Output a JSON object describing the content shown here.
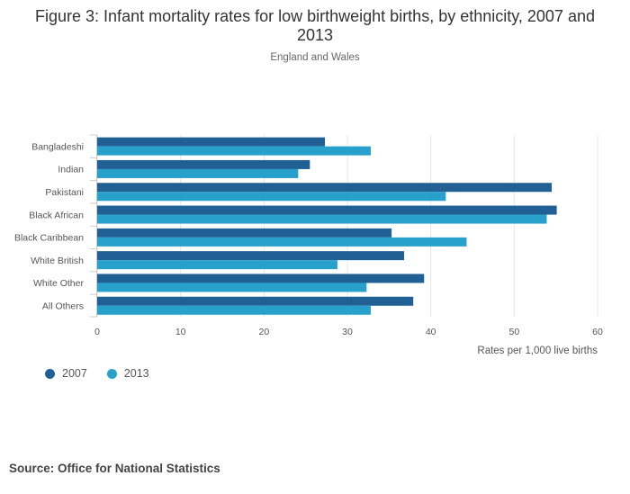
{
  "title": "Figure 3: Infant mortality rates for low birthweight births, by ethnicity, 2007 and 2013",
  "subtitle": "England and Wales",
  "source": "Source: Office for National Statistics",
  "colors": {
    "series_2007": "#206095",
    "series_2013": "#27a0cc",
    "grid": "#e6e6e6",
    "axis": "#cccccc",
    "label": "#555555"
  },
  "chart_data": {
    "type": "bar",
    "orientation": "horizontal",
    "title": "Figure 3: Infant mortality rates for low birthweight births, by ethnicity, 2007 and 2013",
    "subtitle": "England and Wales",
    "xlabel": "Rates per 1,000 live births",
    "ylabel": "",
    "xlim": [
      0,
      60
    ],
    "xticks": [
      "0",
      "10",
      "20",
      "30",
      "40",
      "50",
      "60"
    ],
    "grid": true,
    "legend_position": "bottom-left",
    "categories": [
      "Bangladeshi",
      "Indian",
      "Pakistani",
      "Black African",
      "Black Caribbean",
      "White British",
      "White Other",
      "All Others"
    ],
    "series": [
      {
        "name": "2007",
        "color": "#206095",
        "values": [
          27.3,
          25.5,
          54.5,
          55.1,
          35.3,
          36.8,
          39.2,
          37.9
        ]
      },
      {
        "name": "2013",
        "color": "#27a0cc",
        "values": [
          32.8,
          24.1,
          41.8,
          53.9,
          44.3,
          28.8,
          32.3,
          32.8
        ]
      }
    ]
  }
}
